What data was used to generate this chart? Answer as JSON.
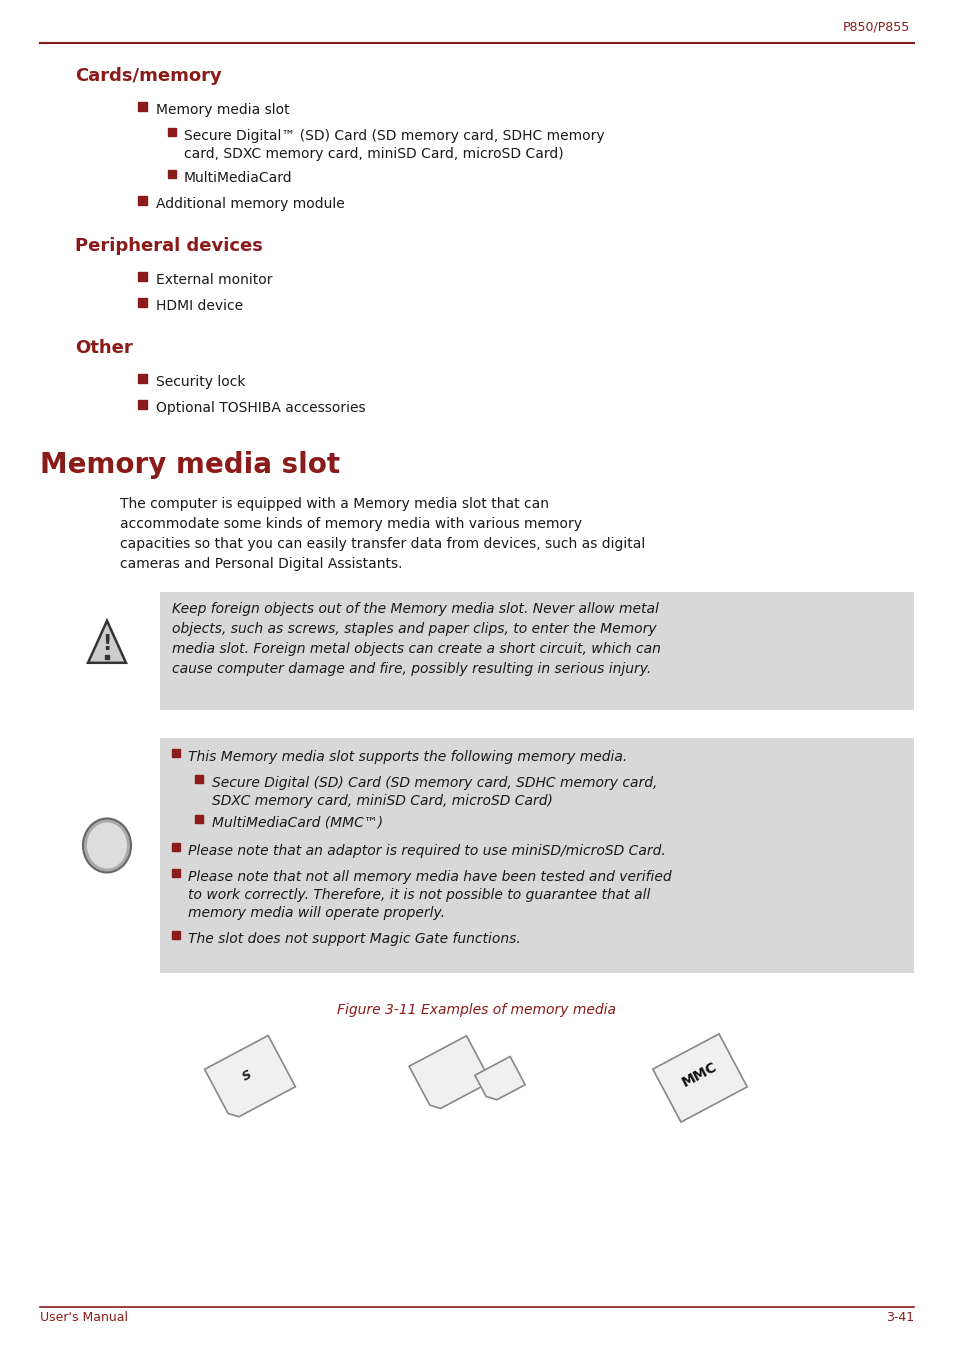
{
  "page_header_right": "P850/P855",
  "header_line_color": "#8B1A1A",
  "section1_title": "Cards/memory",
  "section2_title": "Peripheral devices",
  "section3_title": "Other",
  "section4_title": "Memory media slot",
  "heading_color": "#8B1A1A",
  "bullet_color": "#8B1A1A",
  "text_color": "#1a1a1a",
  "bg_color": "#ffffff",
  "footer_left": "User's Manual",
  "footer_right": "3-41",
  "footer_color": "#8B1A1A",
  "caution_bg": "#d8d8d8",
  "info_bg": "#d8d8d8",
  "fig_caption": "Figure 3-11 Examples of memory media",
  "fig_caption_color": "#8B1A1A"
}
